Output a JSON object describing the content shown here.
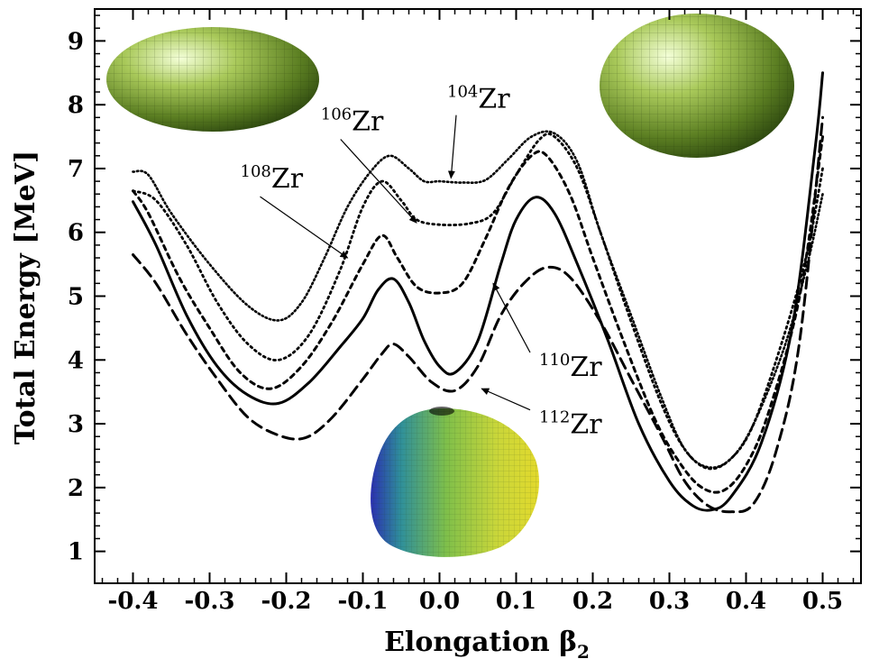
{
  "chart_data": {
    "type": "line",
    "xlabel": "Elongation β",
    "xlabel_sub": "2",
    "ylabel": "Total Energy [MeV]",
    "xlim": [
      -0.45,
      0.55
    ],
    "ylim": [
      0.5,
      9.5
    ],
    "xticks": [
      "-0.4",
      "-0.3",
      "-0.2",
      "-0.1",
      "0.0",
      "0.1",
      "0.2",
      "0.3",
      "0.4",
      "0.5"
    ],
    "yticks": [
      "1",
      "2",
      "3",
      "4",
      "5",
      "6",
      "7",
      "8",
      "9"
    ],
    "series": [
      {
        "name": "104Zr",
        "mass": "104",
        "symbol": "Zr",
        "style": "densedot",
        "points": [
          [
            -0.4,
            6.95
          ],
          [
            -0.38,
            6.9
          ],
          [
            -0.35,
            6.3
          ],
          [
            -0.3,
            5.5
          ],
          [
            -0.25,
            4.85
          ],
          [
            -0.21,
            4.62
          ],
          [
            -0.18,
            4.9
          ],
          [
            -0.15,
            5.6
          ],
          [
            -0.12,
            6.4
          ],
          [
            -0.09,
            6.95
          ],
          [
            -0.065,
            7.2
          ],
          [
            -0.04,
            7.0
          ],
          [
            -0.02,
            6.8
          ],
          [
            0.0,
            6.8
          ],
          [
            0.03,
            6.78
          ],
          [
            0.06,
            6.82
          ],
          [
            0.09,
            7.15
          ],
          [
            0.12,
            7.5
          ],
          [
            0.15,
            7.55
          ],
          [
            0.18,
            7.1
          ],
          [
            0.21,
            6.0
          ],
          [
            0.25,
            4.7
          ],
          [
            0.29,
            3.4
          ],
          [
            0.32,
            2.6
          ],
          [
            0.35,
            2.32
          ],
          [
            0.38,
            2.45
          ],
          [
            0.41,
            3.0
          ],
          [
            0.45,
            4.2
          ],
          [
            0.48,
            5.5
          ],
          [
            0.5,
            6.6
          ]
        ]
      },
      {
        "name": "106Zr",
        "mass": "106",
        "symbol": "Zr",
        "style": "dot",
        "points": [
          [
            -0.4,
            6.65
          ],
          [
            -0.37,
            6.5
          ],
          [
            -0.33,
            5.8
          ],
          [
            -0.29,
            4.9
          ],
          [
            -0.25,
            4.25
          ],
          [
            -0.21,
            4.0
          ],
          [
            -0.17,
            4.4
          ],
          [
            -0.13,
            5.4
          ],
          [
            -0.1,
            6.4
          ],
          [
            -0.075,
            6.8
          ],
          [
            -0.05,
            6.5
          ],
          [
            -0.03,
            6.2
          ],
          [
            0.0,
            6.12
          ],
          [
            0.04,
            6.14
          ],
          [
            0.07,
            6.3
          ],
          [
            0.1,
            6.9
          ],
          [
            0.13,
            7.45
          ],
          [
            0.15,
            7.5
          ],
          [
            0.18,
            7.0
          ],
          [
            0.21,
            6.0
          ],
          [
            0.25,
            4.6
          ],
          [
            0.29,
            3.3
          ],
          [
            0.32,
            2.6
          ],
          [
            0.35,
            2.3
          ],
          [
            0.38,
            2.45
          ],
          [
            0.41,
            3.0
          ],
          [
            0.45,
            4.4
          ],
          [
            0.48,
            5.7
          ],
          [
            0.5,
            7.0
          ]
        ]
      },
      {
        "name": "108Zr",
        "mass": "108",
        "symbol": "Zr",
        "style": "shortdash",
        "points": [
          [
            -0.4,
            6.65
          ],
          [
            -0.38,
            6.3
          ],
          [
            -0.34,
            5.3
          ],
          [
            -0.3,
            4.5
          ],
          [
            -0.26,
            3.8
          ],
          [
            -0.22,
            3.55
          ],
          [
            -0.18,
            3.9
          ],
          [
            -0.14,
            4.6
          ],
          [
            -0.1,
            5.5
          ],
          [
            -0.075,
            5.95
          ],
          [
            -0.055,
            5.6
          ],
          [
            -0.03,
            5.15
          ],
          [
            0.0,
            5.05
          ],
          [
            0.03,
            5.2
          ],
          [
            0.06,
            5.9
          ],
          [
            0.09,
            6.7
          ],
          [
            0.12,
            7.2
          ],
          [
            0.14,
            7.2
          ],
          [
            0.17,
            6.6
          ],
          [
            0.2,
            5.6
          ],
          [
            0.24,
            4.3
          ],
          [
            0.28,
            3.1
          ],
          [
            0.31,
            2.45
          ],
          [
            0.34,
            2.02
          ],
          [
            0.37,
            1.95
          ],
          [
            0.4,
            2.35
          ],
          [
            0.43,
            3.2
          ],
          [
            0.47,
            5.0
          ],
          [
            0.5,
            7.5
          ]
        ]
      },
      {
        "name": "110Zr",
        "mass": "110",
        "symbol": "Zr",
        "style": "solid",
        "points": [
          [
            -0.4,
            6.48
          ],
          [
            -0.37,
            5.8
          ],
          [
            -0.33,
            4.7
          ],
          [
            -0.29,
            3.9
          ],
          [
            -0.25,
            3.45
          ],
          [
            -0.21,
            3.32
          ],
          [
            -0.17,
            3.65
          ],
          [
            -0.13,
            4.2
          ],
          [
            -0.1,
            4.65
          ],
          [
            -0.08,
            5.1
          ],
          [
            -0.06,
            5.27
          ],
          [
            -0.04,
            4.9
          ],
          [
            -0.02,
            4.3
          ],
          [
            0.0,
            3.9
          ],
          [
            0.02,
            3.8
          ],
          [
            0.05,
            4.3
          ],
          [
            0.08,
            5.5
          ],
          [
            0.1,
            6.2
          ],
          [
            0.125,
            6.55
          ],
          [
            0.15,
            6.3
          ],
          [
            0.18,
            5.5
          ],
          [
            0.22,
            4.3
          ],
          [
            0.26,
            3.0
          ],
          [
            0.3,
            2.1
          ],
          [
            0.33,
            1.72
          ],
          [
            0.355,
            1.65
          ],
          [
            0.38,
            1.85
          ],
          [
            0.42,
            2.7
          ],
          [
            0.46,
            4.5
          ],
          [
            0.49,
            7.3
          ],
          [
            0.5,
            8.5
          ]
        ]
      },
      {
        "name": "112Zr",
        "mass": "112",
        "symbol": "Zr",
        "style": "longdash",
        "points": [
          [
            -0.4,
            5.65
          ],
          [
            -0.37,
            5.2
          ],
          [
            -0.33,
            4.4
          ],
          [
            -0.29,
            3.7
          ],
          [
            -0.25,
            3.1
          ],
          [
            -0.21,
            2.82
          ],
          [
            -0.175,
            2.78
          ],
          [
            -0.14,
            3.1
          ],
          [
            -0.1,
            3.7
          ],
          [
            -0.075,
            4.1
          ],
          [
            -0.06,
            4.25
          ],
          [
            -0.04,
            4.05
          ],
          [
            -0.01,
            3.65
          ],
          [
            0.02,
            3.52
          ],
          [
            0.05,
            3.9
          ],
          [
            0.08,
            4.7
          ],
          [
            0.11,
            5.2
          ],
          [
            0.14,
            5.45
          ],
          [
            0.17,
            5.3
          ],
          [
            0.21,
            4.6
          ],
          [
            0.25,
            3.7
          ],
          [
            0.29,
            2.8
          ],
          [
            0.32,
            2.1
          ],
          [
            0.35,
            1.72
          ],
          [
            0.38,
            1.62
          ],
          [
            0.41,
            1.75
          ],
          [
            0.44,
            2.6
          ],
          [
            0.47,
            4.3
          ],
          [
            0.5,
            7.8
          ]
        ]
      }
    ],
    "annotations": [
      {
        "series": "104Zr",
        "mass": "104",
        "symbol": "Zr",
        "label_at": [
          0.01,
          7.95
        ],
        "arrow_to": [
          0.015,
          6.85
        ]
      },
      {
        "series": "106Zr",
        "mass": "106",
        "symbol": "Zr",
        "label_at": [
          -0.155,
          7.6
        ],
        "arrow_to": [
          -0.03,
          6.15
        ]
      },
      {
        "series": "108Zr",
        "mass": "108",
        "symbol": "Zr",
        "label_at": [
          -0.26,
          6.7
        ],
        "arrow_to": [
          -0.12,
          5.6
        ]
      },
      {
        "series": "110Zr",
        "mass": "110",
        "symbol": "Zr",
        "label_at": [
          0.13,
          3.75
        ],
        "arrow_to": [
          0.07,
          5.2
        ]
      },
      {
        "series": "112Zr",
        "mass": "112",
        "symbol": "Zr",
        "label_at": [
          0.13,
          2.85
        ],
        "arrow_to": [
          0.055,
          3.55
        ]
      }
    ],
    "shape_insets": [
      {
        "name": "oblate-shape",
        "style": "green"
      },
      {
        "name": "prolate-shape",
        "style": "green"
      },
      {
        "name": "tetrahedral-shape",
        "style": "blue-yellow"
      }
    ],
    "grid": false,
    "legend": "none"
  }
}
